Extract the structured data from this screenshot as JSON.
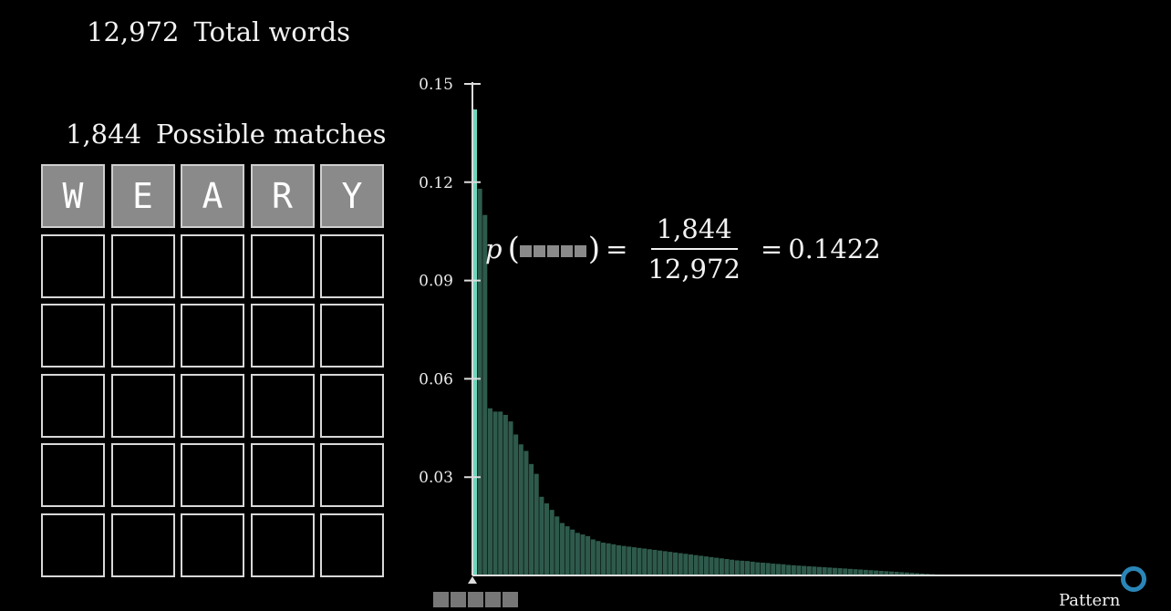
{
  "header": {
    "total_count": "12,972",
    "total_label": "Total words",
    "matches_count": "1,844",
    "matches_label": "Possible matches"
  },
  "board": {
    "guess": [
      "W",
      "E",
      "A",
      "R",
      "Y"
    ],
    "rows": 6
  },
  "formula": {
    "p_symbol": "p",
    "numerator": "1,844",
    "denominator": "12,972",
    "result": "0.1422"
  },
  "chart_data": {
    "type": "bar",
    "xlabel": "Pattern",
    "ylabel": "",
    "ylim": [
      0,
      0.15
    ],
    "yticks": [
      0.03,
      0.06,
      0.09,
      0.12,
      0.15
    ],
    "ytick_labels": [
      "0.03",
      "0.06",
      "0.09",
      "0.12",
      "0.15"
    ],
    "highlighted_index": 0,
    "values": [
      0.1422,
      0.118,
      0.11,
      0.051,
      0.05,
      0.05,
      0.049,
      0.047,
      0.043,
      0.04,
      0.038,
      0.034,
      0.031,
      0.024,
      0.022,
      0.02,
      0.018,
      0.016,
      0.015,
      0.014,
      0.013,
      0.0125,
      0.012,
      0.011,
      0.0105,
      0.01,
      0.0098,
      0.0095,
      0.0092,
      0.009,
      0.0088,
      0.0086,
      0.0084,
      0.0082,
      0.008,
      0.0078,
      0.0076,
      0.0074,
      0.0072,
      0.007,
      0.0068,
      0.0066,
      0.0064,
      0.0062,
      0.006,
      0.0058,
      0.0056,
      0.0054,
      0.0052,
      0.005,
      0.0048,
      0.0046,
      0.0045,
      0.0044,
      0.0042,
      0.004,
      0.0039,
      0.0038,
      0.0036,
      0.0035,
      0.0034,
      0.0032,
      0.0031,
      0.003,
      0.0029,
      0.0028,
      0.0027,
      0.0026,
      0.0025,
      0.0024,
      0.0023,
      0.0022,
      0.0021,
      0.002,
      0.0019,
      0.0018,
      0.0017,
      0.0016,
      0.0015,
      0.0014,
      0.0013,
      0.0012,
      0.0011,
      0.001,
      0.0009,
      0.0008,
      0.0007,
      0.0006,
      0.0005,
      0.0004,
      0.0003,
      0.0002,
      0.0001
    ],
    "colors": {
      "highlight": "#6fd6bd",
      "bar": "#2e5a4c",
      "axis": "#dcdcdc"
    }
  }
}
